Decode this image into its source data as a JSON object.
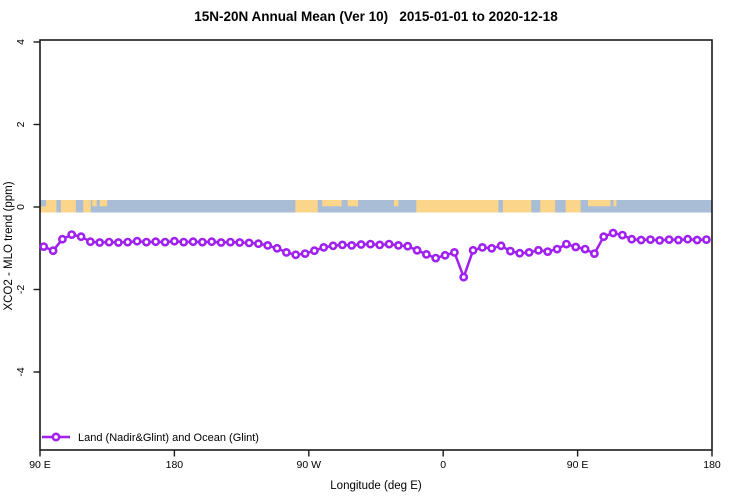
{
  "chart_data": {
    "type": "line",
    "title": "15N-20N Annual Mean (Ver 10)   2015-01-01 to 2020-12-18",
    "xlabel": "Longitude (deg E)",
    "ylabel": "XCO2 - MLO trend (ppm)",
    "legend": [
      "Land (Nadir&Glint) and Ocean (Glint)"
    ],
    "legend_position": "bottom-left",
    "grid": false,
    "ylim": [
      -5.9,
      4.1
    ],
    "xlim_continued_deg_east": [
      90,
      540
    ],
    "x_tick_labels": [
      "90 E",
      "180",
      "90 W",
      "0",
      "90 E",
      "180"
    ],
    "x_ticks_lon": [
      90,
      180,
      270,
      360,
      450,
      540
    ],
    "y_ticks": [
      4,
      2,
      0,
      -2,
      -4
    ],
    "series": [
      {
        "name": "Land (Nadir&Glint) and Ocean (Glint)",
        "marker": "open-circle",
        "color": "#a020f0",
        "lon_start": 92.5,
        "lon_step": 6.25,
        "values": [
          -0.96,
          -1.06,
          -0.78,
          -0.67,
          -0.72,
          -0.84,
          -0.86,
          -0.85,
          -0.86,
          -0.85,
          -0.83,
          -0.85,
          -0.84,
          -0.85,
          -0.83,
          -0.85,
          -0.84,
          -0.85,
          -0.84,
          -0.86,
          -0.85,
          -0.86,
          -0.87,
          -0.89,
          -0.93,
          -1.0,
          -1.1,
          -1.16,
          -1.13,
          -1.06,
          -0.98,
          -0.94,
          -0.92,
          -0.93,
          -0.91,
          -0.9,
          -0.92,
          -0.9,
          -0.93,
          -0.95,
          -1.05,
          -1.15,
          -1.24,
          -1.17,
          -1.1,
          -1.7,
          -1.05,
          -0.98,
          -1.0,
          -0.94,
          -1.07,
          -1.12,
          -1.1,
          -1.05,
          -1.08,
          -1.02,
          -0.9,
          -0.97,
          -1.02,
          -1.13,
          -0.72,
          -0.63,
          -0.68,
          -0.78,
          -0.8,
          -0.79,
          -0.81,
          -0.79,
          -0.8,
          -0.78,
          -0.8,
          -0.79
        ]
      }
    ],
    "zero_band": {
      "ocean_color": "#a9bdd7",
      "land_color": "#fbd58a",
      "value_center": 0,
      "land_segments": [
        {
          "lon1": 90.5,
          "lon2": 94,
          "part": "bottom"
        },
        {
          "lon1": 94,
          "lon2": 101,
          "part": "full"
        },
        {
          "lon1": 104,
          "lon2": 114,
          "part": "full"
        },
        {
          "lon1": 119,
          "lon2": 124,
          "part": "full"
        },
        {
          "lon1": 125,
          "lon2": 128,
          "part": "top"
        },
        {
          "lon1": 130,
          "lon2": 135,
          "part": "top"
        },
        {
          "lon1": 261,
          "lon2": 276,
          "part": "full"
        },
        {
          "lon1": 279,
          "lon2": 292,
          "part": "top"
        },
        {
          "lon1": 296,
          "lon2": 303,
          "part": "top"
        },
        {
          "lon1": 327,
          "lon2": 330,
          "part": "top"
        },
        {
          "lon1": 342,
          "lon2": 397,
          "part": "full"
        },
        {
          "lon1": 400,
          "lon2": 419,
          "part": "full"
        },
        {
          "lon1": 425,
          "lon2": 435,
          "part": "full"
        },
        {
          "lon1": 442,
          "lon2": 452,
          "part": "full"
        },
        {
          "lon1": 457,
          "lon2": 472,
          "part": "top"
        },
        {
          "lon1": 474,
          "lon2": 476,
          "part": "top"
        }
      ]
    },
    "colors": {
      "series": "#a020f0",
      "ocean": "#a9bdd7",
      "land": "#fbd58a",
      "axis": "#1a1a1a"
    }
  }
}
